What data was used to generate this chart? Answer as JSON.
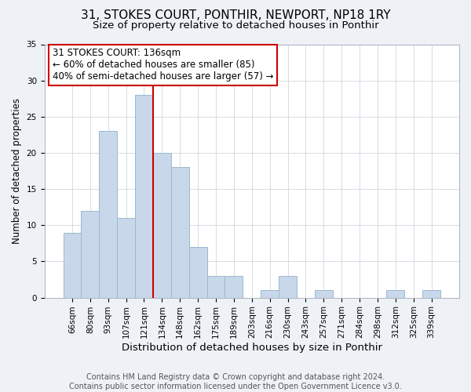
{
  "title": "31, STOKES COURT, PONTHIR, NEWPORT, NP18 1RY",
  "subtitle": "Size of property relative to detached houses in Ponthir",
  "xlabel": "Distribution of detached houses by size in Ponthir",
  "ylabel": "Number of detached properties",
  "footer_lines": [
    "Contains HM Land Registry data © Crown copyright and database right 2024.",
    "Contains public sector information licensed under the Open Government Licence v3.0."
  ],
  "bin_labels": [
    "66sqm",
    "80sqm",
    "93sqm",
    "107sqm",
    "121sqm",
    "134sqm",
    "148sqm",
    "162sqm",
    "175sqm",
    "189sqm",
    "203sqm",
    "216sqm",
    "230sqm",
    "243sqm",
    "257sqm",
    "271sqm",
    "284sqm",
    "298sqm",
    "312sqm",
    "325sqm",
    "339sqm"
  ],
  "bar_heights": [
    9,
    12,
    23,
    11,
    28,
    20,
    18,
    7,
    3,
    3,
    0,
    1,
    3,
    0,
    1,
    0,
    0,
    0,
    1,
    0,
    1
  ],
  "bar_color": "#c8d8ea",
  "bar_edge_color": "#9ab8d0",
  "vline_x_index": 5,
  "vline_color": "#cc0000",
  "annotation_line1": "31 STOKES COURT: 136sqm",
  "annotation_line2": "← 60% of detached houses are smaller (85)",
  "annotation_line3": "40% of semi-detached houses are larger (57) →",
  "ylim": [
    0,
    35
  ],
  "yticks": [
    0,
    5,
    10,
    15,
    20,
    25,
    30,
    35
  ],
  "background_color": "#eef2f7",
  "plot_bg_color": "#ffffff",
  "grid_color": "#d0d8e0",
  "title_fontsize": 11,
  "subtitle_fontsize": 9.5,
  "xlabel_fontsize": 9.5,
  "ylabel_fontsize": 8.5,
  "tick_fontsize": 7.5,
  "annotation_fontsize": 8.5,
  "footer_fontsize": 7
}
